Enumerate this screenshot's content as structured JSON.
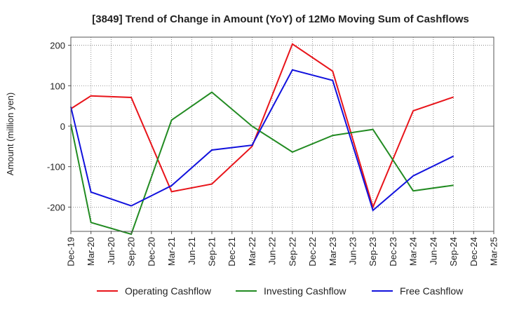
{
  "chart_data": {
    "type": "line",
    "title": "[3849]  Trend of Change in Amount (YoY) of 12Mo Moving Sum of Cashflows",
    "ylabel": "Amount (million yen)",
    "xlabel": "",
    "ylim": [
      -260,
      220
    ],
    "yticks": [
      200,
      100,
      0,
      -100,
      -200
    ],
    "categories": [
      "Dec-19",
      "Mar-20",
      "Jun-20",
      "Sep-20",
      "Dec-20",
      "Mar-21",
      "Jun-21",
      "Sep-21",
      "Dec-21",
      "Mar-22",
      "Jun-22",
      "Sep-22",
      "Dec-22",
      "Mar-23",
      "Jun-23",
      "Sep-23",
      "Dec-23",
      "Mar-24",
      "Jun-24",
      "Sep-24",
      "Dec-24",
      "Mar-25"
    ],
    "grid": true,
    "legend_position": "bottom",
    "series": [
      {
        "name": "Operating Cashflow",
        "color": "#e8141a",
        "values": [
          43,
          75,
          null,
          71,
          null,
          -162,
          null,
          -143,
          null,
          -50,
          null,
          203,
          null,
          136,
          null,
          -200,
          null,
          38,
          null,
          72,
          null,
          null
        ]
      },
      {
        "name": "Investing Cashflow",
        "color": "#228b22",
        "values": [
          5,
          -238,
          null,
          -267,
          null,
          15,
          null,
          84,
          null,
          0,
          null,
          -64,
          null,
          -23,
          null,
          -8,
          null,
          -160,
          null,
          -146,
          null,
          null
        ]
      },
      {
        "name": "Free Cashflow",
        "color": "#1111dd",
        "values": [
          48,
          -163,
          null,
          -197,
          null,
          -147,
          null,
          -59,
          null,
          -47,
          null,
          139,
          null,
          113,
          null,
          -208,
          null,
          -123,
          null,
          -74,
          null,
          null
        ]
      }
    ]
  }
}
